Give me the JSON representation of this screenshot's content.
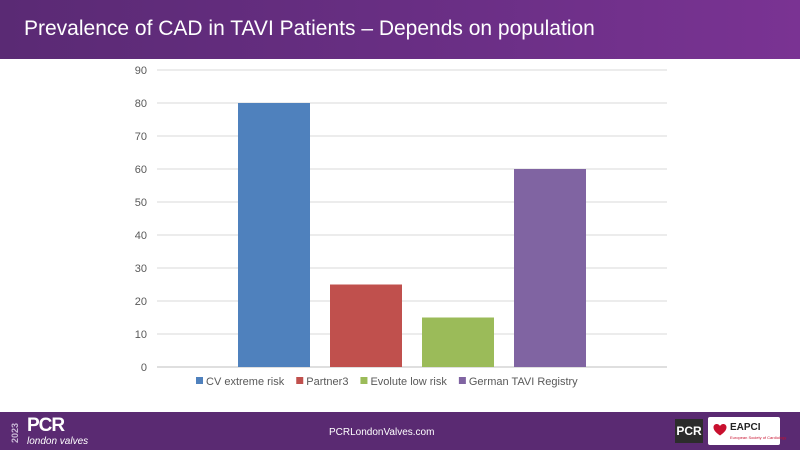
{
  "header": {
    "title": "Prevalence of CAD in TAVI Patients – Depends on population"
  },
  "chart_data": {
    "type": "bar",
    "title": "",
    "xlabel": "",
    "ylabel": "",
    "ylim": [
      0,
      90
    ],
    "yticks": [
      0,
      10,
      20,
      30,
      40,
      50,
      60,
      70,
      80,
      90
    ],
    "grid": true,
    "legend_position": "bottom",
    "series": [
      {
        "name": "CV extreme risk",
        "value": 80,
        "color": "#4f81bd"
      },
      {
        "name": "Partner3",
        "value": 25,
        "color": "#c0504d"
      },
      {
        "name": "Evolute low risk",
        "value": 15,
        "color": "#9bbb59"
      },
      {
        "name": "German TAVI Registry",
        "value": 60,
        "color": "#8064a2"
      }
    ]
  },
  "footer": {
    "year": "2023",
    "brand": "PCR",
    "brand_sub": "london valves",
    "url": "PCRLondonValves.com",
    "logo_pcr": "PCR",
    "logo_eapci": "EAPCI",
    "logo_eapci_sub": "European Society of Cardiology",
    "heart_color": "#c8102e"
  }
}
